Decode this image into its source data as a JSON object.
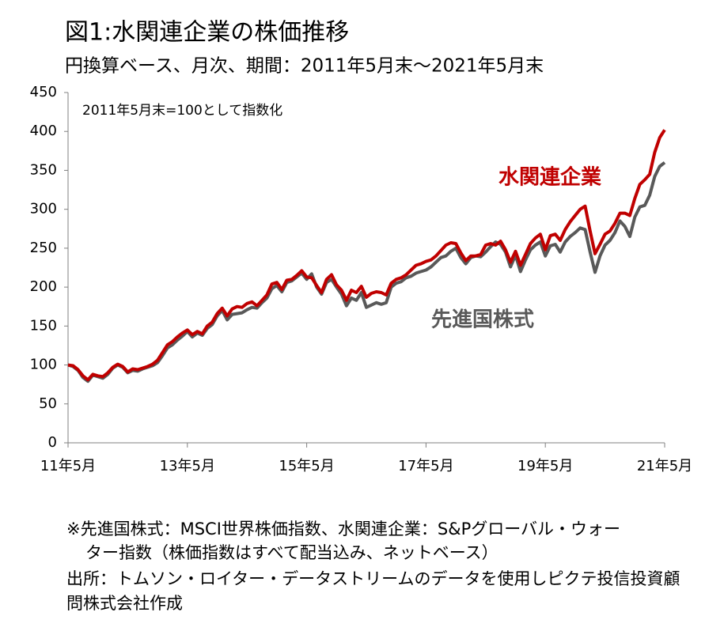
{
  "chart_data": {
    "type": "line",
    "title": "図1:水関連企業の株価推移",
    "subtitle": "円換算ベース、月次、期間：2011年5月末～2021年5月末",
    "annotation": "2011年5月末=100として指数化",
    "categories": [
      "11年5月",
      null,
      null,
      null,
      null,
      null,
      null,
      null,
      null,
      null,
      null,
      null,
      null,
      null,
      null,
      null,
      null,
      null,
      null,
      null,
      null,
      null,
      null,
      null,
      "13年5月",
      null,
      null,
      null,
      null,
      null,
      null,
      null,
      null,
      null,
      null,
      null,
      null,
      null,
      null,
      null,
      null,
      null,
      null,
      null,
      null,
      null,
      null,
      null,
      "15年5月",
      null,
      null,
      null,
      null,
      null,
      null,
      null,
      null,
      null,
      null,
      null,
      null,
      null,
      null,
      null,
      null,
      null,
      null,
      null,
      null,
      null,
      null,
      null,
      "17年5月",
      null,
      null,
      null,
      null,
      null,
      null,
      null,
      null,
      null,
      null,
      null,
      null,
      null,
      null,
      null,
      null,
      null,
      null,
      null,
      null,
      null,
      null,
      null,
      "19年5月",
      null,
      null,
      null,
      null,
      null,
      null,
      null,
      null,
      null,
      null,
      null,
      null,
      null,
      null,
      null,
      null,
      null,
      null,
      null,
      null,
      null,
      null,
      null,
      "21年5月"
    ],
    "series": [
      {
        "name": "水関連企業",
        "color": "#c00000",
        "values": [
          100,
          99,
          94,
          86,
          81,
          88,
          86,
          85,
          90,
          97,
          101,
          98,
          91,
          95,
          94,
          96,
          98,
          101,
          106,
          116,
          126,
          130,
          136,
          141,
          145,
          139,
          143,
          140,
          150,
          155,
          166,
          173,
          163,
          172,
          175,
          174,
          179,
          181,
          176,
          183,
          190,
          204,
          206,
          197,
          209,
          210,
          215,
          221,
          213,
          212,
          202,
          193,
          210,
          216,
          203,
          196,
          183,
          196,
          193,
          201,
          187,
          192,
          194,
          193,
          190,
          205,
          210,
          212,
          216,
          222,
          228,
          230,
          233,
          235,
          240,
          247,
          254,
          257,
          256,
          244,
          234,
          240,
          240,
          242,
          254,
          256,
          254,
          259,
          248,
          232,
          246,
          228,
          242,
          256,
          263,
          268,
          248,
          266,
          268,
          260,
          274,
          284,
          292,
          300,
          304,
          272,
          243,
          255,
          268,
          272,
          282,
          295,
          295,
          292,
          314,
          332,
          338,
          345,
          373,
          392,
          402
        ]
      },
      {
        "name": "先進国株式",
        "color": "#595959",
        "values": [
          100,
          98,
          93,
          84,
          79,
          87,
          85,
          83,
          88,
          96,
          100,
          97,
          90,
          93,
          92,
          95,
          97,
          99,
          103,
          112,
          122,
          126,
          132,
          137,
          143,
          136,
          141,
          138,
          147,
          152,
          163,
          170,
          158,
          165,
          166,
          167,
          171,
          174,
          173,
          180,
          186,
          198,
          202,
          194,
          206,
          208,
          213,
          218,
          210,
          217,
          200,
          191,
          206,
          210,
          200,
          191,
          176,
          186,
          183,
          193,
          174,
          177,
          180,
          178,
          180,
          200,
          205,
          207,
          212,
          214,
          218,
          220,
          222,
          226,
          232,
          238,
          240,
          246,
          250,
          238,
          230,
          238,
          240,
          239,
          245,
          252,
          258,
          255,
          245,
          226,
          241,
          220,
          235,
          248,
          254,
          258,
          240,
          253,
          255,
          245,
          258,
          265,
          270,
          276,
          274,
          245,
          219,
          240,
          254,
          260,
          270,
          285,
          278,
          265,
          290,
          303,
          305,
          318,
          342,
          355,
          360
        ]
      }
    ],
    "ylim": [
      0,
      450
    ],
    "yticks": [
      0,
      50,
      100,
      150,
      200,
      250,
      300,
      350,
      400,
      450
    ],
    "notes": [
      "※先進国株式：MSCI世界株価指数、水関連企業：S&Pグローバル・ウォー",
      "ター指数（株価指数はすべて配当込み、ネットベース）",
      "出所：トムソン・ロイター・データストリームのデータを使用しピクテ投信投資顧",
      "問株式会社作成"
    ]
  }
}
